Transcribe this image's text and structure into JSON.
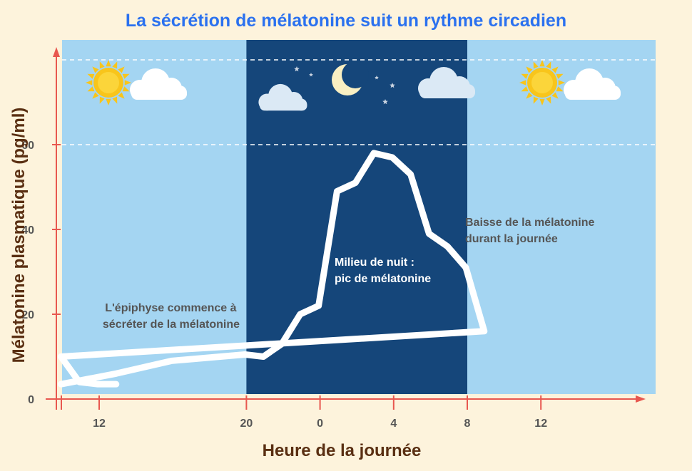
{
  "chart_data": {
    "type": "line",
    "title": "La sécrétion de mélatonine suit un rythme circadien",
    "xlabel": "Heure de la journée",
    "ylabel": "Mélatonine plasmatique (pg/ml)",
    "x_ticks": [
      "12",
      "20",
      "0",
      "4",
      "8",
      "12"
    ],
    "y_ticks": [
      "0",
      "20",
      "40",
      "60"
    ],
    "ylim": [
      0,
      80
    ],
    "gridlines_y": [
      60,
      80
    ],
    "night_band": {
      "from": "20",
      "to": "8"
    },
    "series": [
      {
        "x": [
          "10",
          "13",
          "16",
          "20",
          "21",
          "22",
          "23",
          "0",
          "1",
          "2",
          "3",
          "4",
          "5",
          "6",
          "7",
          "8",
          "9",
          "10",
          "11",
          "12",
          "13"
        ],
        "values": [
          3.5,
          6,
          9,
          10.5,
          10,
          13,
          20,
          22,
          49,
          51,
          58,
          57,
          53,
          39,
          36,
          31,
          16,
          10,
          4,
          3.5,
          3.5
        ],
        "color": "#ffffff"
      }
    ],
    "annotations": [
      {
        "id": "start",
        "lines": [
          "L'épiphyse commence à",
          "sécréter de la mélatonine"
        ]
      },
      {
        "id": "peak",
        "lines": [
          "Milieu de nuit :",
          "pic de mélatonine"
        ]
      },
      {
        "id": "drop",
        "lines": [
          "Baisse de la mélatonine",
          "durant la journée"
        ]
      }
    ]
  },
  "colors": {
    "background": "#fdf3dc",
    "day": "#a4d5f2",
    "night": "#15467a",
    "axis": "#e8574f",
    "title": "#2b71ef",
    "axis_label": "#5a2f12",
    "sun": "#f8c51b",
    "cloud": "#ffffff",
    "cloud_night": "#dbe9f5",
    "moon": "#f9efc2",
    "text_dark": "#555555"
  },
  "icons": [
    "sun-icon",
    "cloud-icon",
    "moon-icon",
    "star-icon"
  ]
}
